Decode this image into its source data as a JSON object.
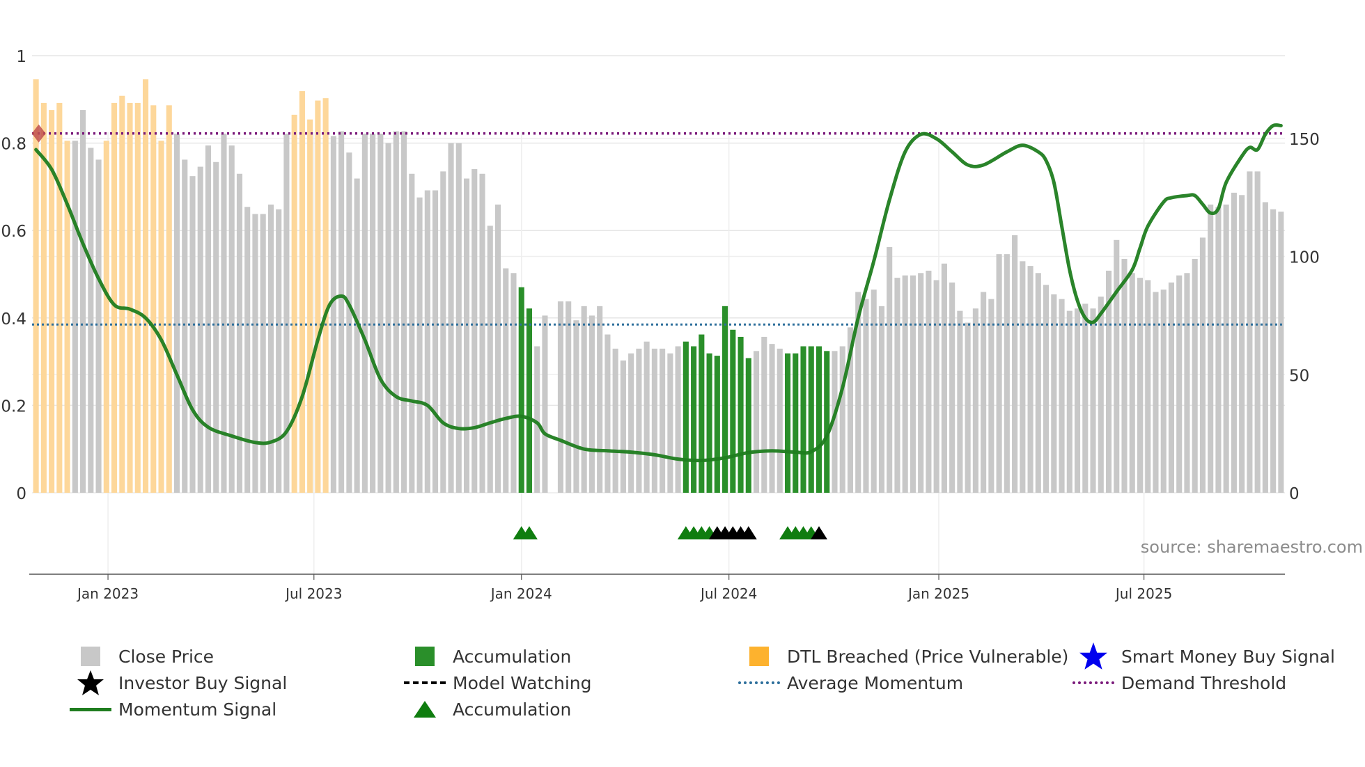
{
  "chart_data": {
    "type": "bar",
    "source": "source: sharemaestro.com",
    "left_axis": {
      "ylim": [
        0,
        1
      ],
      "ticks": [
        "0",
        "0.2",
        "0.4",
        "0.6",
        "0.8",
        "1"
      ],
      "tick_values": [
        0,
        0.2,
        0.4,
        0.6,
        0.8,
        1
      ]
    },
    "right_axis": {
      "ylim": [
        0,
        185
      ],
      "ticks": [
        "0",
        "50",
        "100",
        "150"
      ],
      "tick_values": [
        0,
        50,
        100,
        150
      ]
    },
    "x_axis": {
      "start_index": 0,
      "end_index": 159,
      "ticks": [
        {
          "label": "Jan 2023",
          "index": 9.2
        },
        {
          "label": "Jul 2023",
          "index": 35.5
        },
        {
          "label": "Jan 2024",
          "index": 62
        },
        {
          "label": "Jul 2024",
          "index": 88.5
        },
        {
          "label": "Jan 2025",
          "index": 115.3
        },
        {
          "label": "Jul 2025",
          "index": 141.5
        }
      ]
    },
    "close_price": [
      175,
      165,
      162,
      165,
      149,
      149,
      162,
      146,
      141,
      149,
      165,
      168,
      165,
      165,
      175,
      164,
      149,
      164,
      152,
      141,
      134,
      138,
      147,
      140,
      152,
      147,
      135,
      121,
      118,
      118,
      122,
      120,
      152,
      160,
      170,
      158,
      166,
      167,
      151,
      153,
      144,
      133,
      152,
      152,
      152,
      148,
      153,
      153,
      135,
      125,
      128,
      128,
      136,
      148,
      148,
      133,
      137,
      135,
      113,
      122,
      95,
      93,
      87,
      78,
      62,
      75,
      0,
      81,
      81,
      73,
      79,
      75,
      79,
      67,
      61,
      56,
      59,
      61,
      64,
      61,
      61,
      59,
      62,
      64,
      62,
      67,
      59,
      58,
      79,
      69,
      66,
      57,
      60,
      66,
      63,
      61,
      59,
      59,
      62,
      62,
      62,
      60,
      60,
      62,
      70,
      85,
      82,
      86,
      79,
      104,
      91,
      92,
      92,
      93,
      94,
      90,
      97,
      89,
      77,
      72,
      78,
      85,
      82,
      101,
      101,
      109,
      98,
      96,
      93,
      88,
      84,
      82,
      77,
      78,
      80,
      78,
      83,
      94,
      107,
      99,
      93,
      91,
      90,
      85,
      86,
      89,
      92,
      93,
      99,
      108,
      122,
      121,
      122,
      127,
      126,
      136,
      136,
      123,
      120,
      119
    ],
    "accumulation_indices": [
      62,
      63,
      83,
      84,
      85,
      86,
      87,
      88,
      89,
      90,
      91,
      96,
      97,
      98,
      99,
      100,
      101
    ],
    "dtl_breached_indices": [
      0,
      1,
      2,
      3,
      4,
      9,
      10,
      11,
      12,
      13,
      14,
      15,
      16,
      17,
      33,
      34,
      35,
      36,
      37
    ],
    "momentum_signal": [
      [
        0,
        0.785
      ],
      [
        2,
        0.74
      ],
      [
        4,
        0.66
      ],
      [
        6,
        0.57
      ],
      [
        8,
        0.49
      ],
      [
        10,
        0.43
      ],
      [
        12,
        0.42
      ],
      [
        14,
        0.4
      ],
      [
        16,
        0.35
      ],
      [
        18,
        0.27
      ],
      [
        20,
        0.19
      ],
      [
        22,
        0.15
      ],
      [
        25,
        0.13
      ],
      [
        28,
        0.115
      ],
      [
        30,
        0.116
      ],
      [
        32,
        0.14
      ],
      [
        34,
        0.22
      ],
      [
        36,
        0.35
      ],
      [
        37.5,
        0.43
      ],
      [
        39,
        0.45
      ],
      [
        40,
        0.43
      ],
      [
        42,
        0.35
      ],
      [
        44,
        0.26
      ],
      [
        46,
        0.22
      ],
      [
        48,
        0.21
      ],
      [
        50,
        0.2
      ],
      [
        52,
        0.16
      ],
      [
        54,
        0.147
      ],
      [
        56,
        0.149
      ],
      [
        58,
        0.16
      ],
      [
        60,
        0.17
      ],
      [
        62,
        0.175
      ],
      [
        64,
        0.16
      ],
      [
        65,
        0.135
      ],
      [
        67,
        0.12
      ],
      [
        70,
        0.1
      ],
      [
        73,
        0.096
      ],
      [
        76,
        0.093
      ],
      [
        79,
        0.087
      ],
      [
        82,
        0.077
      ],
      [
        85,
        0.074
      ],
      [
        88,
        0.08
      ],
      [
        91,
        0.092
      ],
      [
        94,
        0.096
      ],
      [
        97,
        0.093
      ],
      [
        99,
        0.094
      ],
      [
        101,
        0.13
      ],
      [
        103,
        0.24
      ],
      [
        105,
        0.4
      ],
      [
        107,
        0.53
      ],
      [
        109,
        0.67
      ],
      [
        111,
        0.78
      ],
      [
        113,
        0.82
      ],
      [
        115,
        0.81
      ],
      [
        117,
        0.78
      ],
      [
        119,
        0.75
      ],
      [
        121,
        0.75
      ],
      [
        124,
        0.78
      ],
      [
        126,
        0.795
      ],
      [
        128,
        0.78
      ],
      [
        129,
        0.76
      ],
      [
        130,
        0.71
      ],
      [
        131,
        0.61
      ],
      [
        132,
        0.51
      ],
      [
        133,
        0.44
      ],
      [
        134,
        0.4
      ],
      [
        135,
        0.39
      ],
      [
        136,
        0.41
      ],
      [
        138,
        0.46
      ],
      [
        140,
        0.51
      ],
      [
        141,
        0.56
      ],
      [
        142,
        0.61
      ],
      [
        144,
        0.665
      ],
      [
        145,
        0.675
      ],
      [
        147,
        0.68
      ],
      [
        148,
        0.68
      ],
      [
        149,
        0.66
      ],
      [
        150,
        0.64
      ],
      [
        151,
        0.65
      ],
      [
        152,
        0.71
      ],
      [
        154,
        0.77
      ],
      [
        155,
        0.79
      ],
      [
        156,
        0.785
      ],
      [
        157,
        0.82
      ],
      [
        158,
        0.84
      ],
      [
        159,
        0.84
      ]
    ],
    "average_momentum": 0.385,
    "demand_threshold": 0.822,
    "triangles": {
      "accumulation": [
        62,
        63,
        83,
        84,
        85,
        86,
        96,
        97,
        98,
        99
      ],
      "model_watching": [
        87,
        88,
        89,
        90,
        91,
        100
      ]
    },
    "smart_money_marker_index": 0
  },
  "colors": {
    "close_price": "#c8c8c8",
    "accumulation": "#2a8f2a",
    "dtl": "#fdd79a",
    "momentum": "#1f7d1f",
    "average_momentum": "#2c6e9b",
    "demand_threshold": "#7a1a7a",
    "grid": "#e6e6e6",
    "axis": "#555555"
  },
  "legend": {
    "close_price": "Close Price",
    "accumulation": "Accumulation",
    "dtl_breached": "DTL Breached (Price Vulnerable)",
    "smart_money": "Smart Money Buy Signal",
    "investor_buy": "Investor Buy Signal",
    "model_watching": "Model Watching",
    "average_momentum": "Average Momentum",
    "demand_threshold": "Demand Threshold",
    "momentum_signal": "Momentum Signal",
    "accumulation_triangle": "Accumulation"
  }
}
